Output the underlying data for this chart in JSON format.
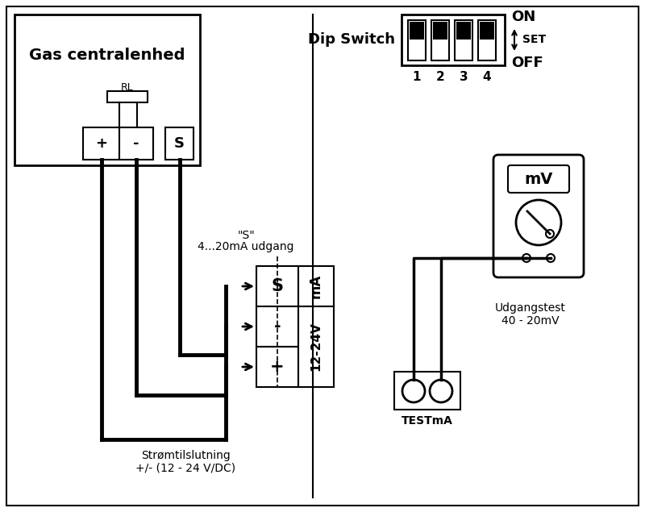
{
  "bg_color": "#ffffff",
  "line_color": "#000000",
  "gas_central_label": "Gas centralenhed",
  "rl_label": "RL",
  "dip_switch_label": "Dip Switch",
  "on_label": "ON",
  "set_label": "SET",
  "off_label": "OFF",
  "mv_label": "mV",
  "udgangstest_label": "Udgangstest\n40 - 20mV",
  "s_annotation_line1": "\"S\"",
  "s_annotation_line2": "4...20mA udgang",
  "stromtilslutning_line1": "Strømtilslutning",
  "stromtilslutning_line2": "+/- (12 - 24 V/DC)",
  "testma_label": "TESTmA"
}
